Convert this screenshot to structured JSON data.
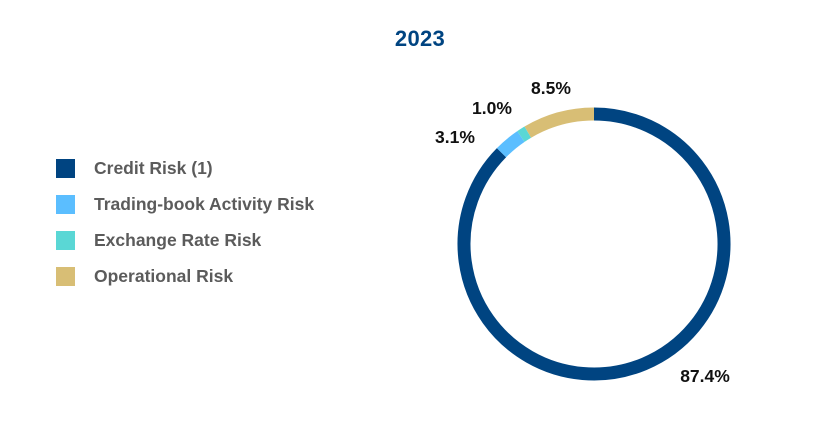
{
  "chart_data": {
    "type": "pie",
    "variant": "donut",
    "title": "2023",
    "categories": [
      "Credit Risk (1)",
      "Trading-book Activity Risk",
      "Exchange Rate Risk",
      "Operational Risk"
    ],
    "values": [
      87.4,
      3.1,
      1.0,
      8.5
    ],
    "value_labels": [
      "87.4%",
      "3.1%",
      "1.0%",
      "8.5%"
    ],
    "colors": [
      "#004481",
      "#5BBEFF",
      "#5AD7D5",
      "#D8BE75"
    ],
    "legend_placement": "left"
  }
}
